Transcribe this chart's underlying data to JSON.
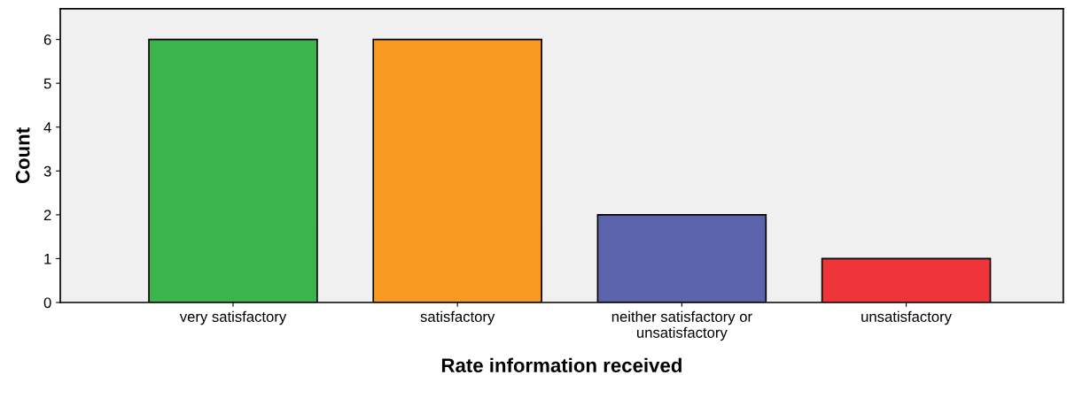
{
  "chart_data": {
    "type": "bar",
    "categories": [
      "very satisfactory",
      "satisfactory",
      "neither satisfactory or\nunsatisfactory",
      "unsatisfactory"
    ],
    "values": [
      6,
      6,
      2,
      1
    ],
    "colors": [
      "#3cb44c",
      "#f89a22",
      "#5b63aa",
      "#ef3539"
    ],
    "xlabel": "Rate information received",
    "ylabel": "Count",
    "ylim": [
      0,
      6.7
    ],
    "yticks": [
      0,
      1,
      2,
      3,
      4,
      5,
      6
    ],
    "grid": false,
    "legend": false
  }
}
